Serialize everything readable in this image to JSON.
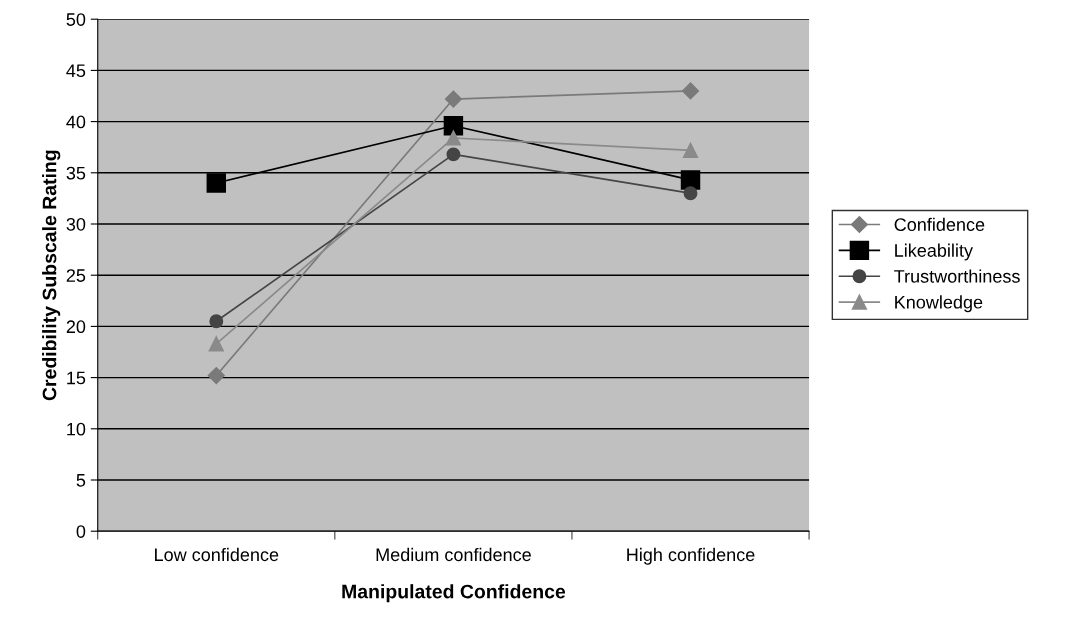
{
  "chart_data": {
    "type": "line",
    "xlabel": "Manipulated Confidence",
    "ylabel": "Credibility Subscale Rating",
    "categories": [
      "Low confidence",
      "Medium confidence",
      "High confidence"
    ],
    "ylim": [
      0,
      50
    ],
    "yticks": [
      0,
      5,
      10,
      15,
      20,
      25,
      30,
      35,
      40,
      45,
      50
    ],
    "grid": "y",
    "legend": "right",
    "series": [
      {
        "name": "Confidence",
        "color": "#7a7a7a",
        "marker": "diamond",
        "values": [
          15.2,
          42.2,
          43.0
        ]
      },
      {
        "name": "Likeability",
        "color": "#000000",
        "marker": "square",
        "values": [
          34.0,
          39.6,
          34.3
        ]
      },
      {
        "name": "Trustworthiness",
        "color": "#454545",
        "marker": "circle",
        "values": [
          20.5,
          36.8,
          33.0
        ]
      },
      {
        "name": "Knowledge",
        "color": "#8a8a8a",
        "marker": "triangle",
        "values": [
          18.3,
          38.4,
          37.2
        ]
      }
    ]
  }
}
